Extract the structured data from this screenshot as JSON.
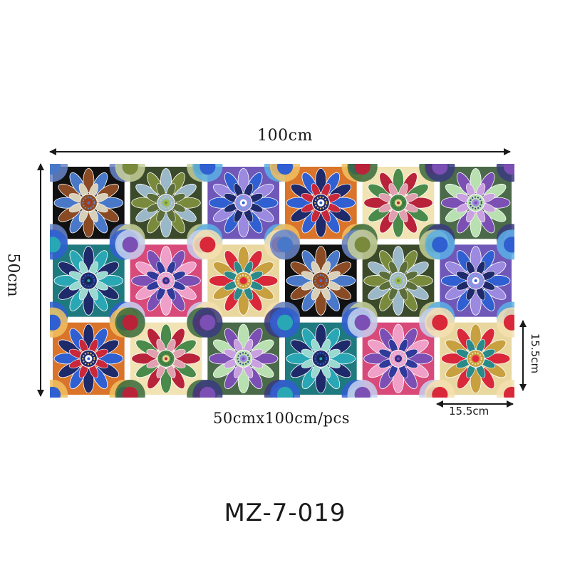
{
  "dimensions": {
    "width": "100cm",
    "height": "50cm",
    "size_per_piece": "50cmx100cm/pcs",
    "tile_width": "15.5cm",
    "tile_height": "15.5cm"
  },
  "product": {
    "model": "MZ-7-019"
  },
  "tile_panel": {
    "rows": 3,
    "columns": 6,
    "tiles": [
      {
        "pattern": "black-blue-brown-petals"
      },
      {
        "pattern": "olive-green-sunburst"
      },
      {
        "pattern": "blue-purple-mandala"
      },
      {
        "pattern": "blue-red-flower-on-orange"
      },
      {
        "pattern": "red-green-star-on-cream"
      },
      {
        "pattern": "purple-green-medallion"
      },
      {
        "pattern": "teal-peacock-feathers"
      },
      {
        "pattern": "pink-purple-mandala"
      },
      {
        "pattern": "red-yellow-circle-mandala"
      },
      {
        "pattern": "black-blue-brown-petals"
      },
      {
        "pattern": "olive-green-sunburst"
      },
      {
        "pattern": "blue-purple-mandala"
      },
      {
        "pattern": "blue-red-flower-on-orange"
      },
      {
        "pattern": "red-green-star-on-cream"
      },
      {
        "pattern": "purple-green-medallion"
      },
      {
        "pattern": "teal-peacock-feathers"
      },
      {
        "pattern": "pink-purple-mandala"
      },
      {
        "pattern": "red-yellow-circle-mandala"
      }
    ]
  },
  "colors": {
    "arrow": "#1a1a1a",
    "navy": "#1f2a6b",
    "royal_blue": "#2f5fd0",
    "teal": "#2aa7b5",
    "red": "#d8283a",
    "olive": "#7a8a3c",
    "cream": "#f1e3b4",
    "purple": "#7b4fb3",
    "pink": "#e86aa8",
    "brown": "#7a3a1e",
    "orange": "#d9742a"
  }
}
